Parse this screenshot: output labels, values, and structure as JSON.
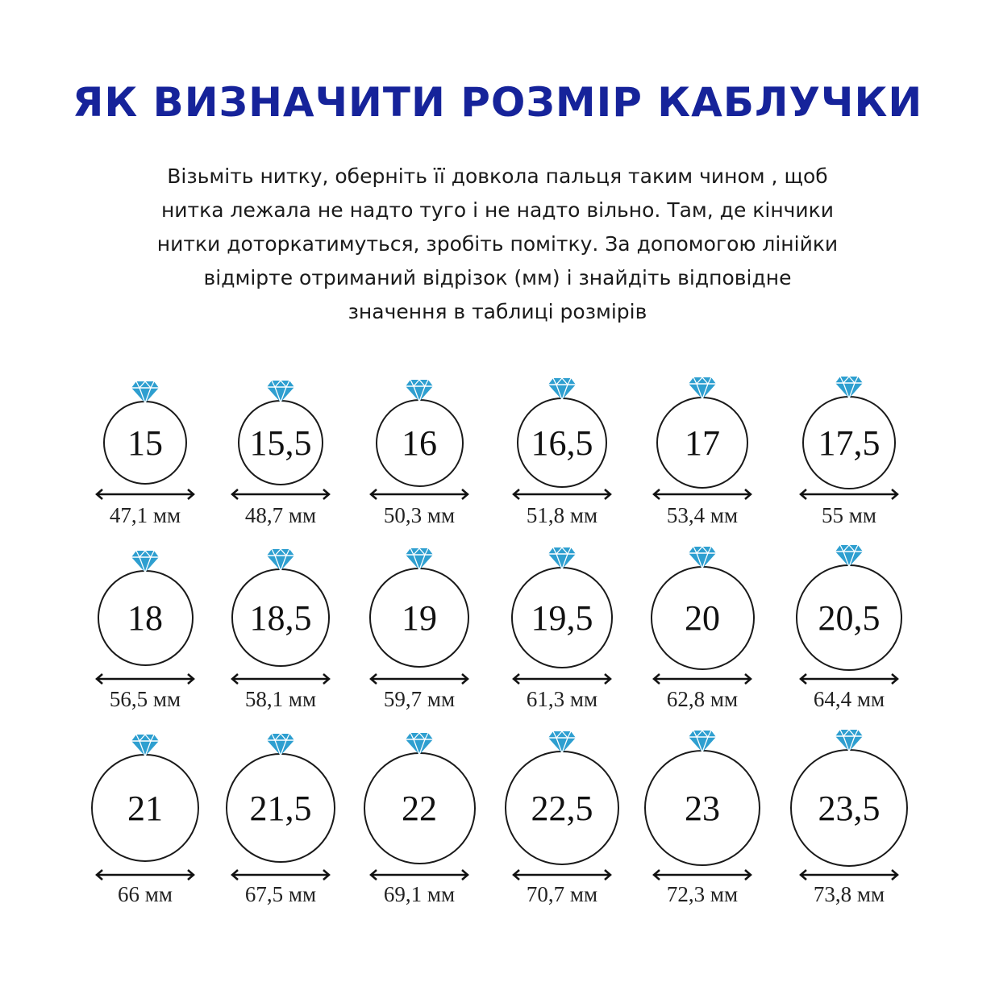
{
  "title": "ЯК ВИЗНАЧИТИ РОЗМІР КАБЛУЧКИ",
  "intro_lines": [
    "Візьміть нитку, оберніть її довкола пальця таким чином , щоб",
    "нитка лежала не надто туго і не надто вільно. Там, де кінчики",
    "нитки доторкатимуться, зробіть помітку. За допомогою лінійки",
    "відмірте отриманий відрізок (мм) і знайдіть відповідне",
    "значення в таблиці розмірів"
  ],
  "colors": {
    "title": "#16239a",
    "gem": "#2e9fd0",
    "ring": "#1a1a1a"
  },
  "icons": {
    "gem": "diamond-icon",
    "arrow": "double-arrow-icon"
  },
  "sizes": [
    {
      "size": "15",
      "length": "47,1 мм"
    },
    {
      "size": "15,5",
      "length": "48,7 мм"
    },
    {
      "size": "16",
      "length": "50,3 мм"
    },
    {
      "size": "16,5",
      "length": "51,8 мм"
    },
    {
      "size": "17",
      "length": "53,4 мм"
    },
    {
      "size": "17,5",
      "length": "55 мм"
    },
    {
      "size": "18",
      "length": "56,5 мм"
    },
    {
      "size": "18,5",
      "length": "58,1 мм"
    },
    {
      "size": "19",
      "length": "59,7 мм"
    },
    {
      "size": "19,5",
      "length": "61,3 мм"
    },
    {
      "size": "20",
      "length": "62,8 мм"
    },
    {
      "size": "20,5",
      "length": "64,4 мм"
    },
    {
      "size": "21",
      "length": "66 мм"
    },
    {
      "size": "21,5",
      "length": "67,5 мм"
    },
    {
      "size": "22",
      "length": "69,1 мм"
    },
    {
      "size": "22,5",
      "length": "70,7 мм"
    },
    {
      "size": "23",
      "length": "72,3 мм"
    },
    {
      "size": "23,5",
      "length": "73,8 мм"
    }
  ]
}
